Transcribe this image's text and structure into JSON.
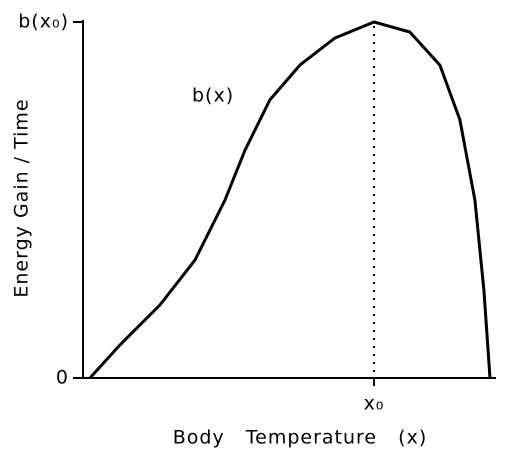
{
  "chart_data": {
    "type": "line",
    "y_label": "Energy Gain / Time",
    "x_label": "Body Temperature (x)",
    "annotation": "b(x)",
    "x": [
      1.7,
      9.1,
      18.9,
      27.5,
      34.9,
      39.8,
      45.9,
      53.3,
      61.9,
      71.5,
      80.3,
      87.7,
      92.6,
      96.3,
      98.5,
      100
    ],
    "values": [
      0,
      9.3,
      20.5,
      33.1,
      50,
      64,
      78.1,
      87.9,
      95.5,
      100,
      97.2,
      87.9,
      72.5,
      50,
      24.7,
      0
    ],
    "color": "#000000",
    "xlim": [
      0,
      100
    ],
    "ylim": [
      0,
      100
    ],
    "xticks": [
      {
        "value": 71.5,
        "label": "x₀"
      }
    ],
    "yticks": [
      0,
      {
        "value": 100,
        "label": "b(x₀)"
      }
    ]
  }
}
